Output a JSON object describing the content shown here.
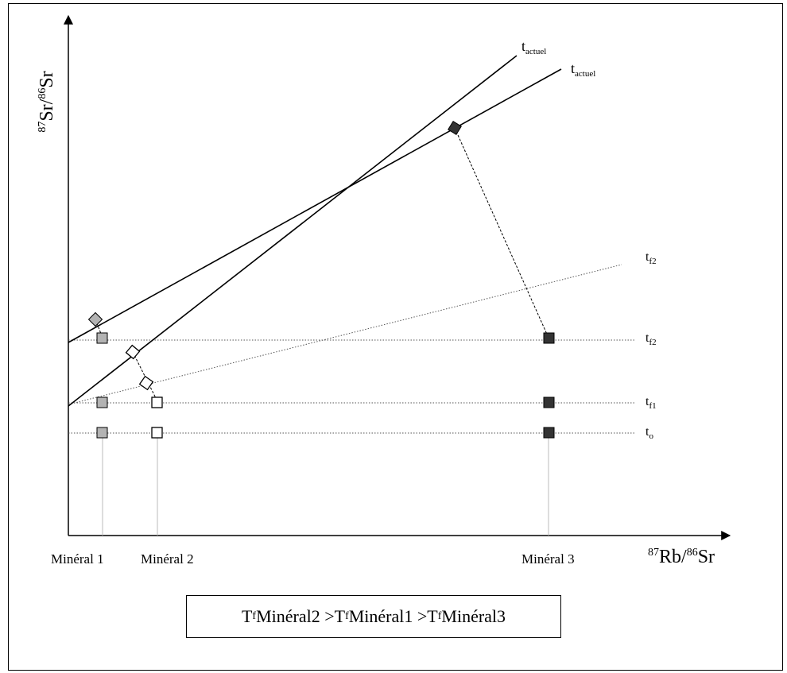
{
  "axes": {
    "y_label": "Sr",
    "y_sup_a": "87",
    "y_mid": "Sr/",
    "y_sup_b": "86",
    "x_sup_a": "87",
    "x_base_a": "Rb/",
    "x_sup_b": "86",
    "x_base_b": "Sr"
  },
  "minerals": [
    {
      "label": "Minéral 1",
      "fill": "#b3b3b3"
    },
    {
      "label": "Minéral 2",
      "fill": "#ffffff"
    },
    {
      "label": "Minéral 3",
      "fill": "#333333"
    }
  ],
  "line_labels": {
    "t_actuel_1": {
      "base": "t",
      "sub": "actuel"
    },
    "t_actuel_2": {
      "base": "t",
      "sub": "actuel"
    },
    "t_f2_slope": {
      "base": "t",
      "sub": "f2"
    },
    "t_f2": {
      "base": "t",
      "sub": "f2"
    },
    "t_f1": {
      "base": "t",
      "sub": "f1"
    },
    "t_o": {
      "base": "t",
      "sub": "o"
    }
  },
  "formula": {
    "t1": "T",
    "s1": "f",
    "m1": " Minéral2 >T",
    "s2": "f",
    "m2": " Minéral1 >T",
    "s3": "f",
    "m3": " Minéral3"
  }
}
